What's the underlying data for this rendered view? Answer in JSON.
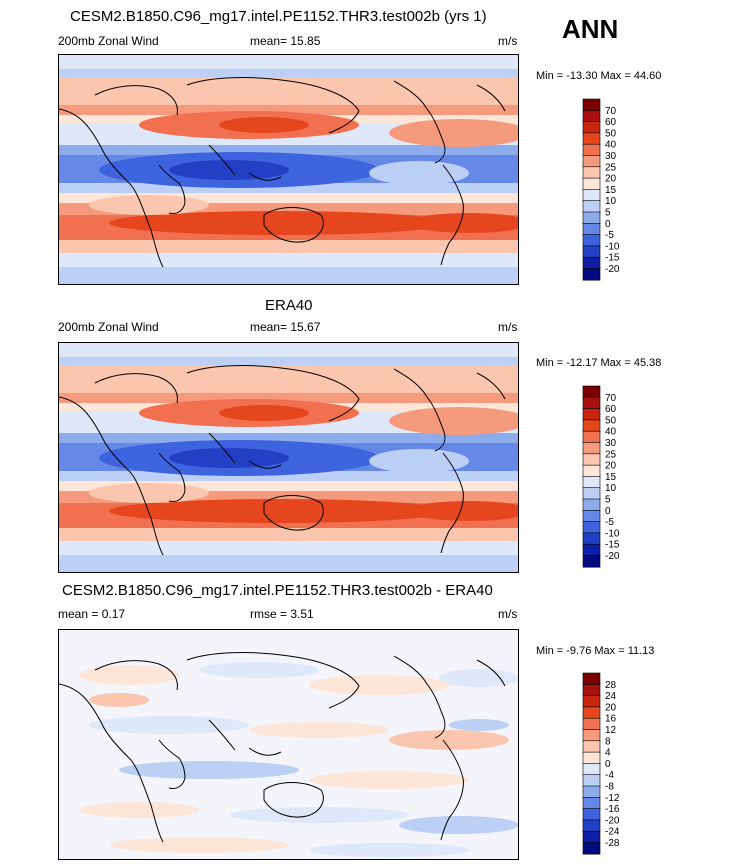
{
  "season": "ANN",
  "chart_data": [
    {
      "type": "heatmap",
      "title": "CESM2.B1850.C96_mg17.intel.PE1152.THR3.test002b (yrs 1)",
      "left_label": "200mb Zonal Wind",
      "center_label": "mean=  15.85",
      "units": "m/s",
      "min_max": "Min = -13.30 Max =  44.60",
      "min": -13.3,
      "max": 44.6,
      "mean": 15.85,
      "colorbar_labels": [
        "70",
        "60",
        "50",
        "40",
        "30",
        "25",
        "20",
        "15",
        "10",
        "5",
        "0",
        "-5",
        "-10",
        "-15",
        "-20"
      ],
      "colormap": "positive"
    },
    {
      "type": "heatmap",
      "title": "ERA40",
      "left_label": "200mb Zonal Wind",
      "center_label": "mean=  15.67",
      "units": "m/s",
      "min_max": "Min = -12.17 Max =  45.38",
      "min": -12.17,
      "max": 45.38,
      "mean": 15.67,
      "colorbar_labels": [
        "70",
        "60",
        "50",
        "40",
        "30",
        "25",
        "20",
        "15",
        "10",
        "5",
        "0",
        "-5",
        "-10",
        "-15",
        "-20"
      ],
      "colormap": "positive"
    },
    {
      "type": "heatmap",
      "title": "CESM2.B1850.C96_mg17.intel.PE1152.THR3.test002b - ERA40",
      "left_label": "mean =  0.17",
      "center_label": "rmse =  3.51",
      "units": "m/s",
      "min_max": "Min = -9.76 Max =  11.13",
      "min": -9.76,
      "max": 11.13,
      "mean": 0.17,
      "rmse": 3.51,
      "colorbar_labels": [
        "28",
        "24",
        "20",
        "16",
        "12",
        "8",
        "4",
        "0",
        "-4",
        "-8",
        "-12",
        "-16",
        "-20",
        "-24",
        "-28"
      ],
      "colormap": "difference"
    }
  ],
  "colors": {
    "positive": [
      "#7a0000",
      "#a80f0f",
      "#c8260e",
      "#e6461e",
      "#f07050",
      "#f59a7c",
      "#fac6ad",
      "#fde6d8",
      "#dfe8f8",
      "#bccff4",
      "#8cacec",
      "#6688e6",
      "#3d63de",
      "#2240c4",
      "#0d1fa4",
      "#000b80"
    ],
    "difference": [
      "#7a0000",
      "#a80f0f",
      "#c8260e",
      "#e6461e",
      "#f07050",
      "#f59a7c",
      "#fac6ad",
      "#fde6d8",
      "#dfe8f8",
      "#bccff4",
      "#8cacec",
      "#6688e6",
      "#3d63de",
      "#2240c4",
      "#0d1fa4",
      "#000b80"
    ]
  }
}
